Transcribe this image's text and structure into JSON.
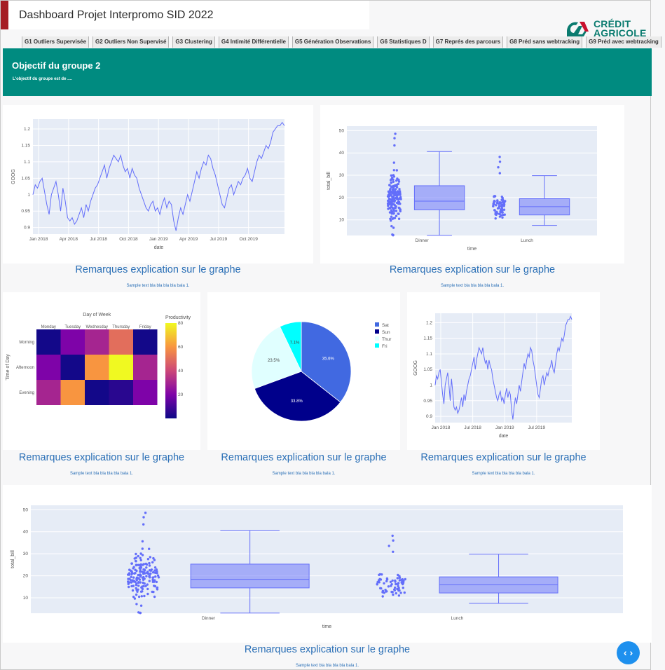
{
  "app": {
    "title": "Dashboard Projet Interpromo SID 2022"
  },
  "logo": {
    "line1": "CRÉDIT",
    "line2": "AGRICOLE",
    "color": "#0a7b6f"
  },
  "nav": {
    "tabs": [
      "G1 Outliers Supervisée",
      "G2 Outliers Non Supervisé",
      "G3 Clustering",
      "G4 Intimité Différentielle",
      "G5 Génération Observations",
      "G6 Statistiques D",
      "G7 Représ des parcours",
      "G8 Préd sans webtracking",
      "G9 Préd avec webtracking"
    ]
  },
  "banner": {
    "heading": "Objectif du groupe 2",
    "text": "L'objectif du groupe est de ....",
    "color": "#008b80"
  },
  "remarks": {
    "label": "Remarques explication sur le graphe",
    "sample": "Sample text bla bla bla bla bala 1."
  },
  "fab": {
    "icon": "code-icon",
    "glyph": "‹ ›"
  },
  "chart_data": [
    {
      "type": "line",
      "xlabel": "date",
      "ylabel": "GOOG",
      "xticks": [
        "Jan 2018",
        "Apr 2018",
        "Jul 2018",
        "Oct 2018",
        "Jan 2019",
        "Apr 2019",
        "Jul 2019",
        "Oct 2019"
      ],
      "yticks": [
        "0.9",
        "0.95",
        "1",
        "1.05",
        "1.1",
        "1.15",
        "1.2"
      ],
      "ylim": [
        0.88,
        1.23
      ],
      "values": [
        1.0,
        1.03,
        1.02,
        1.04,
        1.05,
        1.01,
        0.97,
        0.94,
        1.0,
        1.02,
        1.04,
        1.0,
        0.95,
        1.02,
        0.98,
        0.93,
        0.92,
        0.93,
        0.91,
        0.92,
        0.94,
        0.96,
        0.93,
        0.97,
        0.95,
        0.98,
        1.0,
        1.02,
        1.03,
        1.05,
        1.07,
        1.09,
        1.05,
        1.08,
        1.1,
        1.12,
        1.11,
        1.1,
        1.12,
        1.09,
        1.07,
        1.08,
        1.05,
        1.08,
        1.06,
        1.05,
        1.02,
        1.0,
        0.98,
        0.96,
        0.95,
        0.97,
        0.98,
        0.95,
        0.96,
        0.94,
        0.97,
        0.99,
        0.96,
        0.98,
        0.97,
        0.92,
        0.89,
        0.93,
        0.96,
        0.94,
        0.97,
        1.0,
        0.98,
        1.01,
        1.04,
        1.07,
        1.05,
        1.08,
        1.1,
        1.09,
        1.12,
        1.11,
        1.08,
        1.06,
        1.03,
        1.0,
        0.97,
        0.96,
        0.99,
        1.02,
        1.03,
        1.0,
        1.02,
        1.04,
        1.03,
        1.05,
        1.06,
        1.08,
        1.05,
        1.04,
        1.07,
        1.1,
        1.12,
        1.11,
        1.13,
        1.15,
        1.14,
        1.16,
        1.19,
        1.2,
        1.21,
        1.21,
        1.22,
        1.21
      ]
    },
    {
      "type": "box",
      "xlabel": "time",
      "ylabel": "total_bill",
      "categories": [
        "Dinner",
        "Lunch"
      ],
      "yticks": [
        "10",
        "20",
        "30",
        "40",
        "50"
      ],
      "ylim": [
        3,
        52
      ],
      "boxes": [
        {
          "name": "Dinner",
          "min": 3.07,
          "q1": 14.5,
          "median": 18.4,
          "q3": 25.3,
          "max": 40.6,
          "outliers_max": 50.8
        },
        {
          "name": "Lunch",
          "min": 7.5,
          "q1": 12.2,
          "median": 15.9,
          "q3": 19.5,
          "max": 29.8,
          "outliers_max": 43.1
        }
      ],
      "color": "#636efa"
    },
    {
      "type": "heatmap",
      "title": "Day of Week",
      "ylabel": "Time of Day",
      "colorbar_title": "Productivity",
      "x": [
        "Monday",
        "Tuesday",
        "Wednesday",
        "Thursday",
        "Friday"
      ],
      "y": [
        "Morning",
        "Afternoon",
        "Evening"
      ],
      "z": [
        [
          1,
          20,
          30,
          50,
          1
        ],
        [
          20,
          1,
          60,
          80,
          30
        ],
        [
          30,
          60,
          1,
          5,
          20
        ]
      ],
      "colorbar_ticks": [
        "20",
        "40",
        "60",
        "80"
      ]
    },
    {
      "type": "pie",
      "labels": [
        "Sat",
        "Sun",
        "Thur",
        "Fri"
      ],
      "values": [
        35.6,
        33.8,
        23.5,
        7.1
      ],
      "value_labels": [
        "35.6%",
        "33.8%",
        "23.5%",
        "7.1%"
      ],
      "colors": [
        "#4169e1",
        "#00008b",
        "#e0ffff",
        "#00ffff"
      ]
    },
    {
      "type": "line",
      "xlabel": "date",
      "ylabel": "GOOG",
      "xticks": [
        "Jan 2018",
        "Jul 2018",
        "Jan 2019",
        "Jul 2019"
      ],
      "yticks": [
        "0.9",
        "0.95",
        "1",
        "1.05",
        "1.1",
        "1.15",
        "1.2"
      ],
      "ylim": [
        0.88,
        1.23
      ],
      "ref": "same series as chart 1"
    },
    {
      "type": "box",
      "xlabel": "time",
      "ylabel": "total_bill",
      "categories": [
        "Dinner",
        "Lunch"
      ],
      "yticks": [
        "10",
        "20",
        "30",
        "40",
        "50"
      ],
      "ylim": [
        3,
        52
      ],
      "ref": "same data as chart 2"
    }
  ]
}
